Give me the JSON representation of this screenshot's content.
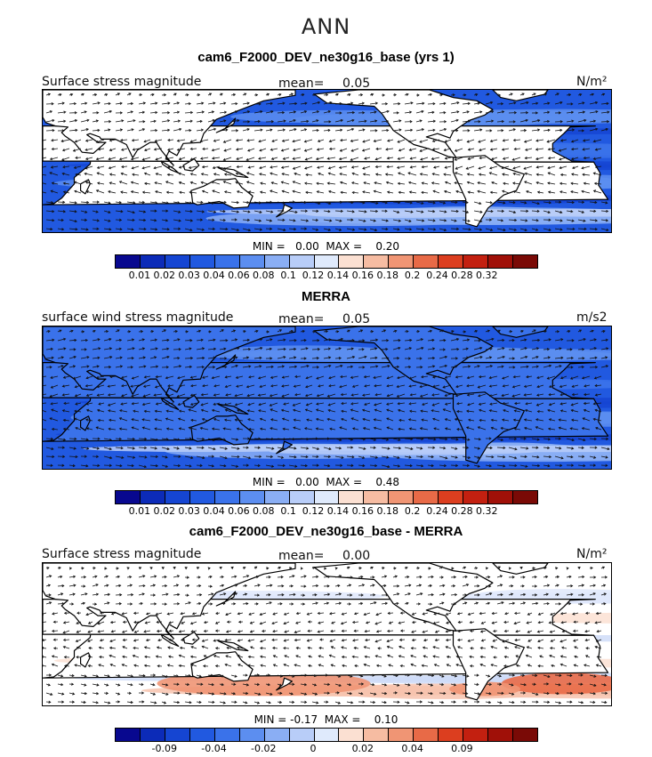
{
  "figure": {
    "title": "ANN"
  },
  "panels": [
    {
      "title": "cam6_F2000_DEV_ne30g16_base (yrs 1)",
      "variable": "Surface stress magnitude",
      "mean_label": "mean=",
      "mean_value": "0.05",
      "units": "N/m²",
      "minmax": "MIN =   0.00  MAX =    0.20",
      "kind": "magnitude"
    },
    {
      "title": "MERRA",
      "variable": "surface wind stress magnitude",
      "mean_label": "mean=",
      "mean_value": "0.05",
      "units": "m/s2",
      "minmax": "MIN =   0.00  MAX =    0.48",
      "kind": "magnitude"
    },
    {
      "title": "cam6_F2000_DEV_ne30g16_base - MERRA",
      "variable": "Surface stress magnitude",
      "mean_label": "mean=",
      "mean_value": "0.00",
      "units": "N/m²",
      "minmax": "MIN = -0.17  MAX =    0.10",
      "kind": "difference"
    }
  ],
  "colorbars": {
    "magnitude": {
      "colors": [
        "#08088f",
        "#0c2bb8",
        "#1545d2",
        "#2159e0",
        "#3a72ea",
        "#5c8ef0",
        "#8aaef4",
        "#b8cdf8",
        "#dfeafc",
        "#fbe0d2",
        "#f6bca2",
        "#f09574",
        "#e86a47",
        "#dc3e1f",
        "#c32010",
        "#a01008",
        "#7a0a06"
      ],
      "ticks": [
        "0.01",
        "0.02",
        "0.03",
        "0.04",
        "0.06",
        "0.08",
        "0.1",
        "0.12",
        "0.14",
        "0.16",
        "0.18",
        "0.2",
        "0.24",
        "0.28",
        "0.32"
      ]
    },
    "difference": {
      "colors": [
        "#08088f",
        "#0c2bb8",
        "#1545d2",
        "#2159e0",
        "#3a72ea",
        "#5c8ef0",
        "#8aaef4",
        "#b8cdf8",
        "#dfeafc",
        "#fbe0d2",
        "#f6bca2",
        "#f09574",
        "#e86a47",
        "#dc3e1f",
        "#c32010",
        "#a01008",
        "#7a0a06"
      ],
      "ticks": [
        "-0.09",
        "",
        "-0.04",
        "",
        "-0.02",
        "",
        "0",
        "",
        "0.02",
        "",
        "0.04",
        "",
        "0.09"
      ],
      "tick_positions": [
        2,
        3,
        4,
        5,
        6,
        7,
        8,
        9,
        10,
        11,
        12,
        13,
        14
      ]
    }
  }
}
